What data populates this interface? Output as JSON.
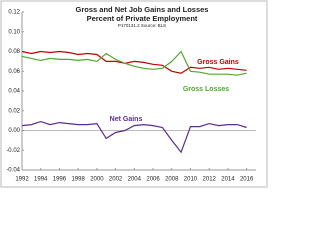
{
  "chart_data": {
    "type": "line",
    "title": "Gross and Net Job Gains and Losses",
    "subtitle": "Percent of Private Employment",
    "source": "P170131.2 Source: BLS",
    "x": [
      1992,
      1993,
      1994,
      1995,
      1996,
      1997,
      1998,
      1999,
      2000,
      2001,
      2002,
      2003,
      2004,
      2005,
      2006,
      2007,
      2008,
      2009,
      2010,
      2011,
      2012,
      2013,
      2014,
      2015,
      2016
    ],
    "series": [
      {
        "name": "Gross Gains",
        "color": "#c00000",
        "values": [
          0.08,
          0.078,
          0.08,
          0.079,
          0.08,
          0.079,
          0.077,
          0.078,
          0.077,
          0.07,
          0.07,
          0.068,
          0.07,
          0.069,
          0.067,
          0.066,
          0.06,
          0.058,
          0.064,
          0.063,
          0.064,
          0.062,
          0.063,
          0.062,
          0.061
        ]
      },
      {
        "name": "Gross Losses",
        "color": "#4ea72e",
        "values": [
          0.075,
          0.073,
          0.071,
          0.073,
          0.072,
          0.072,
          0.071,
          0.072,
          0.07,
          0.078,
          0.072,
          0.068,
          0.065,
          0.063,
          0.062,
          0.063,
          0.07,
          0.08,
          0.06,
          0.059,
          0.057,
          0.057,
          0.057,
          0.056,
          0.058
        ]
      },
      {
        "name": "Net Gains",
        "color": "#5b2c8f",
        "values": [
          0.005,
          0.006,
          0.009,
          0.006,
          0.008,
          0.007,
          0.006,
          0.006,
          0.007,
          -0.008,
          -0.002,
          0.0,
          0.005,
          0.006,
          0.005,
          0.003,
          -0.01,
          -0.022,
          0.004,
          0.004,
          0.007,
          0.005,
          0.006,
          0.006,
          0.003
        ]
      }
    ],
    "xlim": [
      1992,
      2017
    ],
    "xticks": [
      1992,
      1994,
      1996,
      1998,
      2000,
      2002,
      2004,
      2006,
      2008,
      2010,
      2012,
      2014,
      2016
    ],
    "ylim": [
      -0.04,
      0.12
    ],
    "yticks": [
      -0.04,
      -0.02,
      {
        "value": 0,
        "label": "0.00"
      },
      0.02,
      0.04,
      0.06,
      0.08,
      {
        "value": 0.1,
        "label": "0.10"
      },
      0.12
    ],
    "grid": false
  }
}
